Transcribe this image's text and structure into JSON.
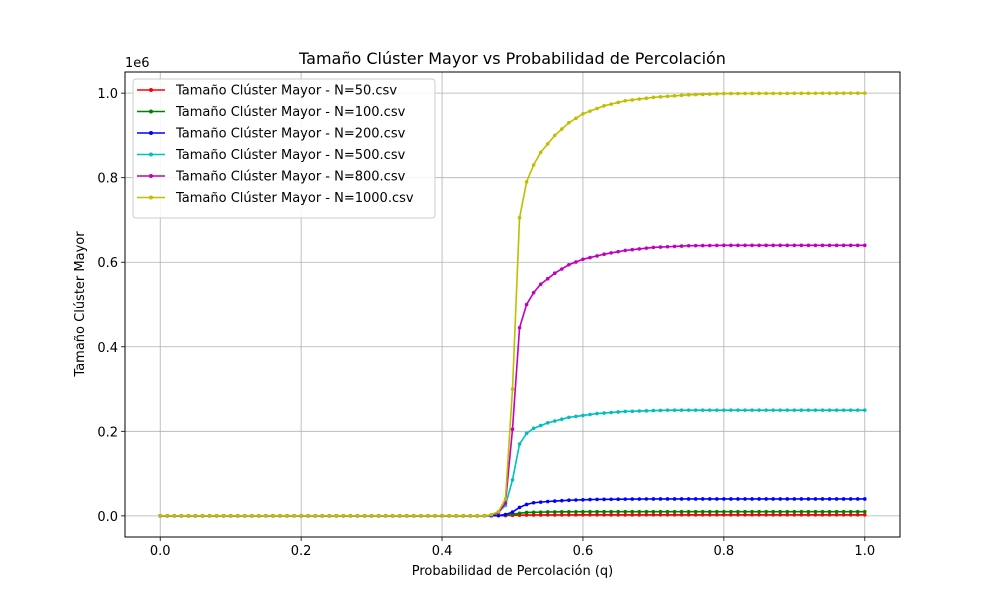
{
  "chart_data": {
    "type": "line",
    "title": "Tamaño Clúster Mayor vs Probabilidad de Percolación",
    "xlabel": "Probabilidad de Percolación (q)",
    "ylabel": "Tamaño Clúster Mayor",
    "y_offset_label": "1e6",
    "xlim": [
      -0.05,
      1.05
    ],
    "ylim": [
      -0.05,
      1.05
    ],
    "xticks": [
      0.0,
      0.2,
      0.4,
      0.6,
      0.8,
      1.0
    ],
    "xtick_labels": [
      "0.0",
      "0.2",
      "0.4",
      "0.6",
      "0.8",
      "1.0"
    ],
    "yticks": [
      0.0,
      0.2,
      0.4,
      0.6,
      0.8,
      1.0
    ],
    "ytick_labels": [
      "0.0",
      "0.2",
      "0.4",
      "0.6",
      "0.8",
      "1.0"
    ],
    "grid": true,
    "legend_position": "top-left",
    "x_start": 0.0,
    "x_end": 1.0,
    "x_step": 0.01,
    "series": [
      {
        "name": "Tamaño Clúster Mayor - N=50.csv",
        "color": "#ff0000",
        "profile": [
          [
            0.0,
            0.0
          ],
          [
            0.45,
            0.0
          ],
          [
            0.49,
            0.0007
          ],
          [
            0.5,
            0.0012
          ],
          [
            0.51,
            0.0017
          ],
          [
            0.53,
            0.0021
          ],
          [
            0.56,
            0.0023
          ],
          [
            0.6,
            0.0024
          ],
          [
            0.7,
            0.0025
          ],
          [
            1.0,
            0.0025
          ]
        ]
      },
      {
        "name": "Tamaño Clúster Mayor - N=100.csv",
        "color": "#008000",
        "profile": [
          [
            0.0,
            0.0
          ],
          [
            0.45,
            0.0
          ],
          [
            0.48,
            0.001
          ],
          [
            0.49,
            0.002
          ],
          [
            0.5,
            0.004
          ],
          [
            0.51,
            0.006
          ],
          [
            0.52,
            0.008
          ],
          [
            0.55,
            0.0093
          ],
          [
            0.6,
            0.0098
          ],
          [
            0.7,
            0.01
          ],
          [
            1.0,
            0.01
          ]
        ]
      },
      {
        "name": "Tamaño Clúster Mayor - N=200.csv",
        "color": "#0000ff",
        "profile": [
          [
            0.0,
            0.0
          ],
          [
            0.46,
            0.0
          ],
          [
            0.48,
            0.001
          ],
          [
            0.49,
            0.003
          ],
          [
            0.5,
            0.009
          ],
          [
            0.51,
            0.02
          ],
          [
            0.52,
            0.027
          ],
          [
            0.53,
            0.031
          ],
          [
            0.55,
            0.034
          ],
          [
            0.58,
            0.037
          ],
          [
            0.62,
            0.039
          ],
          [
            0.7,
            0.04
          ],
          [
            1.0,
            0.04
          ]
        ]
      },
      {
        "name": "Tamaño Clúster Mayor - N=500.csv",
        "color": "#00bfbf",
        "profile": [
          [
            0.0,
            0.0
          ],
          [
            0.46,
            0.0
          ],
          [
            0.47,
            0.002
          ],
          [
            0.48,
            0.008
          ],
          [
            0.49,
            0.025
          ],
          [
            0.5,
            0.085
          ],
          [
            0.51,
            0.17
          ],
          [
            0.52,
            0.195
          ],
          [
            0.53,
            0.207
          ],
          [
            0.55,
            0.22
          ],
          [
            0.58,
            0.233
          ],
          [
            0.62,
            0.242
          ],
          [
            0.66,
            0.247
          ],
          [
            0.72,
            0.25
          ],
          [
            1.0,
            0.25
          ]
        ]
      },
      {
        "name": "Tamaño Clúster Mayor - N=800.csv",
        "color": "#bf00bf",
        "profile": [
          [
            0.0,
            0.0
          ],
          [
            0.46,
            0.0
          ],
          [
            0.47,
            0.002
          ],
          [
            0.48,
            0.008
          ],
          [
            0.49,
            0.03
          ],
          [
            0.5,
            0.205
          ],
          [
            0.51,
            0.445
          ],
          [
            0.52,
            0.5
          ],
          [
            0.53,
            0.528
          ],
          [
            0.54,
            0.548
          ],
          [
            0.56,
            0.574
          ],
          [
            0.58,
            0.594
          ],
          [
            0.6,
            0.607
          ],
          [
            0.63,
            0.619
          ],
          [
            0.66,
            0.628
          ],
          [
            0.7,
            0.635
          ],
          [
            0.75,
            0.639
          ],
          [
            0.8,
            0.64
          ],
          [
            1.0,
            0.64
          ]
        ]
      },
      {
        "name": "Tamaño Clúster Mayor - N=1000.csv",
        "color": "#bfbf00",
        "profile": [
          [
            0.0,
            0.0
          ],
          [
            0.46,
            0.0
          ],
          [
            0.47,
            0.003
          ],
          [
            0.48,
            0.01
          ],
          [
            0.49,
            0.04
          ],
          [
            0.5,
            0.3
          ],
          [
            0.51,
            0.705
          ],
          [
            0.52,
            0.79
          ],
          [
            0.53,
            0.83
          ],
          [
            0.54,
            0.86
          ],
          [
            0.56,
            0.9
          ],
          [
            0.58,
            0.93
          ],
          [
            0.6,
            0.951
          ],
          [
            0.63,
            0.97
          ],
          [
            0.66,
            0.982
          ],
          [
            0.7,
            0.99
          ],
          [
            0.75,
            0.996
          ],
          [
            0.8,
            0.999
          ],
          [
            1.0,
            1.0
          ]
        ]
      }
    ]
  }
}
